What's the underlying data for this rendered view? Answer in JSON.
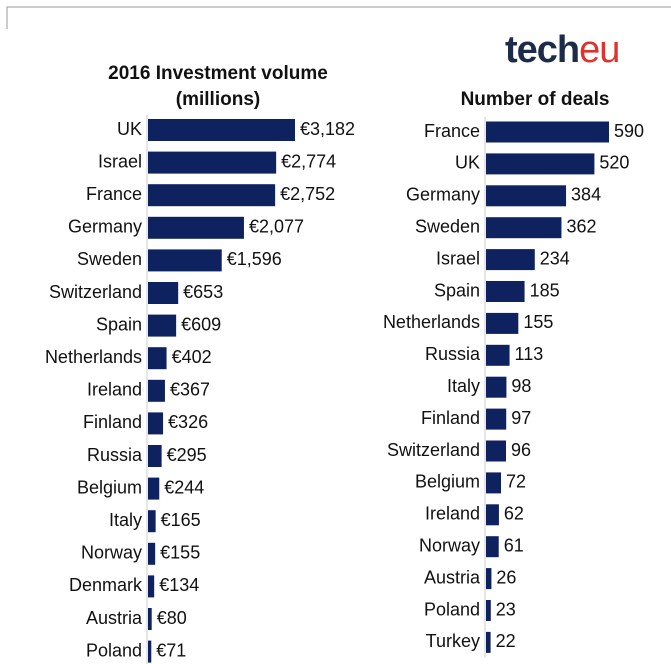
{
  "logo": {
    "first": "tech",
    "second": "eu"
  },
  "chart_data": [
    {
      "type": "bar",
      "orientation": "horizontal",
      "title": [
        "2016 Investment volume",
        "(millions)"
      ],
      "color": "#0f2260",
      "categories": [
        "UK",
        "Israel",
        "France",
        "Germany",
        "Sweden",
        "Switzerland",
        "Spain",
        "Netherlands",
        "Ireland",
        "Finland",
        "Russia",
        "Belgium",
        "Italy",
        "Norway",
        "Denmark",
        "Austria",
        "Poland"
      ],
      "values": [
        3182,
        2774,
        2752,
        2077,
        1596,
        653,
        609,
        402,
        367,
        326,
        295,
        244,
        165,
        155,
        134,
        80,
        71
      ],
      "value_labels": [
        "€3,182",
        "€2,774",
        "€2,752",
        "€2,077",
        "€1,596",
        "€653",
        "€609",
        "€402",
        "€367",
        "€326",
        "€295",
        "€244",
        "€165",
        "€155",
        "€134",
        "€80",
        "€71"
      ]
    },
    {
      "type": "bar",
      "orientation": "horizontal",
      "title": [
        "Number of deals"
      ],
      "color": "#0f2260",
      "categories": [
        "France",
        "UK",
        "Germany",
        "Sweden",
        "Israel",
        "Spain",
        "Netherlands",
        "Russia",
        "Italy",
        "Finland",
        "Switzerland",
        "Belgium",
        "Ireland",
        "Norway",
        "Austria",
        "Poland",
        "Turkey"
      ],
      "values": [
        590,
        520,
        384,
        362,
        234,
        185,
        155,
        113,
        98,
        97,
        96,
        72,
        62,
        61,
        26,
        23,
        22
      ]
    }
  ]
}
